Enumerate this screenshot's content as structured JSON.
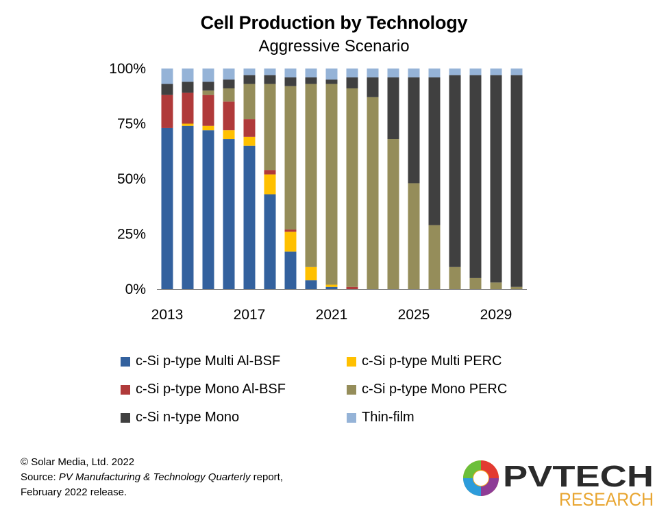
{
  "chart_data": {
    "type": "bar",
    "stacked": true,
    "title": "Cell Production by Technology",
    "subtitle": "Aggressive Scenario",
    "xlabel": "",
    "ylabel": "",
    "ylim": [
      0,
      100
    ],
    "yticks": [
      "0%",
      "25%",
      "50%",
      "75%",
      "100%"
    ],
    "xtick_labels": [
      "2013",
      "2017",
      "2021",
      "2025",
      "2029"
    ],
    "categories": [
      "2013",
      "2014",
      "2015",
      "2016",
      "2017",
      "2018",
      "2019",
      "2020",
      "2021",
      "2022",
      "2023",
      "2024",
      "2025",
      "2026",
      "2027",
      "2028",
      "2029",
      "2030"
    ],
    "legend_position": "bottom",
    "series": [
      {
        "name": "c-Si p-type Multi Al-BSF",
        "color": "#33619E",
        "values": [
          73,
          74,
          72,
          68,
          65,
          43,
          17,
          4,
          1,
          0,
          0,
          0,
          0,
          0,
          0,
          0,
          0,
          0
        ]
      },
      {
        "name": "c-Si p-type Multi PERC",
        "color": "#FFC000",
        "values": [
          0,
          1,
          2,
          4,
          4,
          9,
          9,
          6,
          1,
          0,
          0,
          0,
          0,
          0,
          0,
          0,
          0,
          0
        ]
      },
      {
        "name": "c-Si p-type Mono Al-BSF",
        "color": "#B03A3A",
        "values": [
          15,
          14,
          14,
          13,
          8,
          2,
          1,
          0,
          0,
          1,
          0,
          0,
          0,
          0,
          0,
          0,
          0,
          0
        ]
      },
      {
        "name": "c-Si p-type Mono PERC",
        "color": "#958D5A",
        "values": [
          0,
          0,
          2,
          6,
          16,
          39,
          65,
          83,
          91,
          90,
          87,
          68,
          48,
          29,
          10,
          5,
          3,
          1
        ]
      },
      {
        "name": "c-Si n-type Mono",
        "color": "#404040",
        "values": [
          5,
          5,
          4,
          4,
          4,
          4,
          4,
          3,
          2,
          5,
          9,
          28,
          48,
          67,
          87,
          92,
          94,
          96
        ]
      },
      {
        "name": "Thin-film",
        "color": "#95B3D7",
        "values": [
          7,
          6,
          6,
          5,
          3,
          3,
          4,
          4,
          5,
          4,
          4,
          4,
          4,
          4,
          3,
          3,
          3,
          3
        ]
      }
    ]
  },
  "legend": {
    "items": [
      {
        "label": "c-Si p-type Multi Al-BSF",
        "color": "#33619E"
      },
      {
        "label": "c-Si p-type Multi PERC",
        "color": "#FFC000"
      },
      {
        "label": "c-Si p-type Mono Al-BSF",
        "color": "#B03A3A"
      },
      {
        "label": "c-Si p-type Mono PERC",
        "color": "#958D5A"
      },
      {
        "label": "c-Si n-type Mono",
        "color": "#404040"
      },
      {
        "label": "Thin-film",
        "color": "#95B3D7"
      }
    ]
  },
  "footer": {
    "copyright": "© Solar Media, Ltd. 2022",
    "source_prefix": "Source: ",
    "source_italic": "PV Manufacturing & Technology Quarterly",
    "source_suffix": " report,",
    "release": "February 2022 release."
  },
  "logo": {
    "word_main": "PVTECH",
    "word_sub": "RESEARCH",
    "color_main": "#2B2B2B",
    "color_sub": "#E8A530"
  }
}
